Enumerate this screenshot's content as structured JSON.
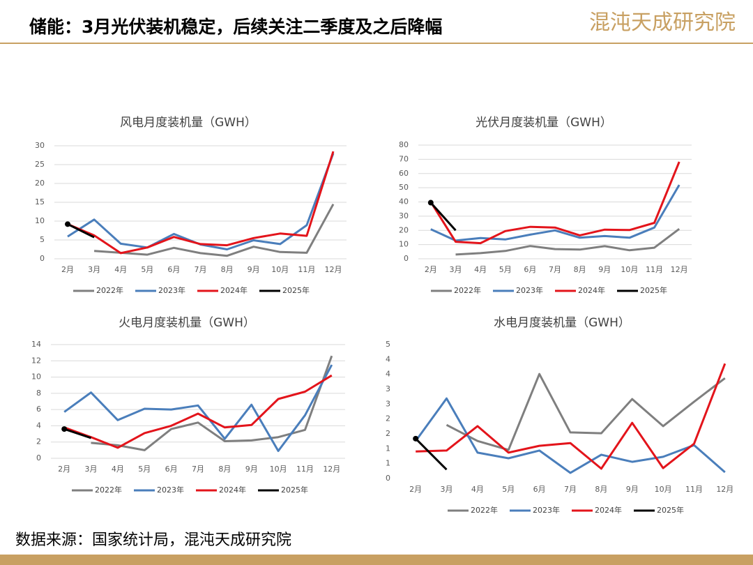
{
  "header": {
    "title": "储能：3月光伏装机稳定，后续关注二季度及之后降幅",
    "logo": "混沌天成研究院"
  },
  "source": "数据来源：国家统计局，混沌天成研究院",
  "chart_data": [
    {
      "type": "line",
      "title": "风电月度装机量（GWH）",
      "categories": [
        "2月",
        "3月",
        "4月",
        "5月",
        "6月",
        "7月",
        "8月",
        "9月",
        "10月",
        "11月",
        "12月"
      ],
      "ylim": [
        0,
        30
      ],
      "yticks": [
        0,
        5,
        10,
        15,
        20,
        25,
        30
      ],
      "grid": true,
      "series": [
        {
          "name": "2022年",
          "color": "#7f7f7f",
          "values": [
            null,
            2.1,
            1.6,
            1.1,
            2.9,
            1.5,
            0.8,
            3.2,
            1.8,
            1.6,
            14.5
          ]
        },
        {
          "name": "2023年",
          "color": "#4a7ebb",
          "values": [
            5.9,
            10.4,
            4.0,
            3.0,
            6.6,
            3.8,
            2.5,
            4.9,
            3.9,
            8.9,
            28.0
          ]
        },
        {
          "name": "2024年",
          "color": "#e3141b",
          "values": [
            9.2,
            6.2,
            1.5,
            3.0,
            5.8,
            3.9,
            3.6,
            5.5,
            6.7,
            6.1,
            28.5
          ]
        },
        {
          "name": "2025年",
          "color": "#000000",
          "values": [
            9.2,
            5.7,
            null,
            null,
            null,
            null,
            null,
            null,
            null,
            null,
            null
          ]
        }
      ]
    },
    {
      "type": "line",
      "title": "光伏月度装机量（GWH）",
      "categories": [
        "2月",
        "3月",
        "4月",
        "5月",
        "6月",
        "7月",
        "8月",
        "9月",
        "10月",
        "11月",
        "12月"
      ],
      "ylim": [
        0,
        80
      ],
      "yticks": [
        0,
        10,
        20,
        30,
        40,
        50,
        60,
        70,
        80
      ],
      "grid": true,
      "series": [
        {
          "name": "2022年",
          "color": "#7f7f7f",
          "values": [
            null,
            3.0,
            4.0,
            5.5,
            9.0,
            6.8,
            6.5,
            8.9,
            6.0,
            7.8,
            21.0
          ]
        },
        {
          "name": "2023年",
          "color": "#4a7ebb",
          "values": [
            20.8,
            12.8,
            14.6,
            13.6,
            17.0,
            20.0,
            14.8,
            16.0,
            14.8,
            22.0,
            52.0
          ]
        },
        {
          "name": "2024年",
          "color": "#e3141b",
          "values": [
            40.0,
            12.0,
            11.0,
            19.5,
            22.5,
            22.0,
            16.5,
            20.5,
            20.2,
            25.3,
            68.2
          ]
        },
        {
          "name": "2025年",
          "color": "#000000",
          "values": [
            39.5,
            20.0,
            null,
            null,
            null,
            null,
            null,
            null,
            null,
            null,
            null
          ]
        }
      ]
    },
    {
      "type": "line",
      "title": "火电月度装机量（GWH）",
      "categories": [
        "2月",
        "3月",
        "4月",
        "5月",
        "6月",
        "7月",
        "8月",
        "9月",
        "10月",
        "11月",
        "12月"
      ],
      "ylim": [
        0,
        14
      ],
      "yticks": [
        0,
        2,
        4,
        6,
        8,
        10,
        12,
        14
      ],
      "grid": true,
      "series": [
        {
          "name": "2022年",
          "color": "#7f7f7f",
          "values": [
            null,
            1.9,
            1.6,
            1.0,
            3.6,
            4.4,
            2.1,
            2.2,
            2.6,
            3.5,
            12.6
          ]
        },
        {
          "name": "2023年",
          "color": "#4a7ebb",
          "values": [
            5.7,
            8.1,
            4.7,
            6.1,
            6.0,
            6.5,
            2.4,
            6.6,
            0.9,
            5.3,
            11.5
          ]
        },
        {
          "name": "2024年",
          "color": "#e3141b",
          "values": [
            3.8,
            2.6,
            1.3,
            3.1,
            4.0,
            5.5,
            3.8,
            4.1,
            7.3,
            8.2,
            10.2
          ]
        },
        {
          "name": "2025年",
          "color": "#000000",
          "values": [
            3.6,
            2.5,
            null,
            null,
            null,
            null,
            null,
            null,
            null,
            null,
            null
          ]
        }
      ]
    },
    {
      "type": "line",
      "title": "水电月度装机量（GWH）",
      "categories": [
        "2月",
        "3月",
        "4月",
        "5月",
        "6月",
        "7月",
        "8月",
        "9月",
        "10月",
        "11月",
        "12月"
      ],
      "ylim": [
        0,
        4.5
      ],
      "yticks": [
        0,
        {
          "value": 0.5,
          "label": "1"
        },
        1,
        {
          "value": 1.5,
          "label": "2"
        },
        2,
        {
          "value": 2.5,
          "label": "3"
        },
        3,
        {
          "value": 3.5,
          "label": "4"
        },
        4,
        {
          "value": 4.5,
          "label": "5"
        }
      ],
      "grid": false,
      "series": [
        {
          "name": "2022年",
          "color": "#7f7f7f",
          "values": [
            null,
            1.8,
            1.26,
            0.96,
            3.51,
            1.55,
            1.52,
            2.67,
            1.76,
            2.58,
            3.37
          ]
        },
        {
          "name": "2023年",
          "color": "#4a7ebb",
          "values": [
            1.26,
            2.69,
            0.87,
            0.68,
            0.94,
            0.19,
            0.8,
            0.56,
            0.73,
            1.12,
            0.21
          ]
        },
        {
          "name": "2024年",
          "color": "#e3141b",
          "values": [
            0.91,
            0.94,
            1.76,
            0.87,
            1.1,
            1.19,
            0.33,
            1.87,
            0.35,
            1.17,
            3.86
          ]
        },
        {
          "name": "2025年",
          "color": "#000000",
          "values": [
            1.34,
            0.3,
            null,
            null,
            null,
            null,
            null,
            null,
            null,
            null,
            null
          ]
        }
      ]
    }
  ]
}
